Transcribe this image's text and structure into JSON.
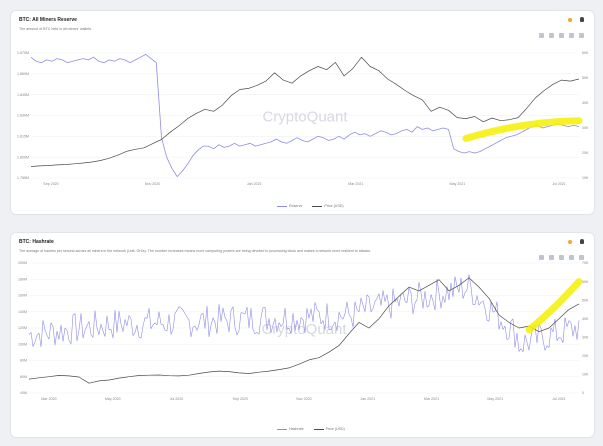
{
  "colors": {
    "reserve": "#8f8ce6",
    "price": "#4a4a4a",
    "highlight": "#f4f000",
    "grid": "#eef0f3",
    "watermark": "#d7d9e2"
  },
  "watermark": "CryptoQuant",
  "chart_data": [
    {
      "type": "line",
      "title": "BTC: All Miners Reserve",
      "subtitle": "The amount of BTC held in all miners' wallets",
      "x_ticks": [
        "Sep 2020",
        "Nov 2020",
        "Jan 2021",
        "Mar 2021",
        "May 2021",
        "Jul 2021"
      ],
      "y_left_ticks": [
        "1.875M",
        "1.860M",
        "1.845M",
        "1.830M",
        "1.815M",
        "1.800M",
        "1.785M"
      ],
      "y_left_range": [
        1785000,
        1875000
      ],
      "y_right_ticks": [
        "60K",
        "50K",
        "40K",
        "30K",
        "20K",
        "10K"
      ],
      "y_right_range": [
        5000,
        65000
      ],
      "legend_position": "bottom",
      "series": [
        {
          "name": "Reserve",
          "axis": "left",
          "x": [
            0,
            3,
            6,
            9,
            12,
            15,
            18,
            21,
            24,
            27,
            30,
            33,
            36,
            39,
            42,
            45,
            48,
            51,
            54,
            57,
            60,
            63,
            66,
            69,
            72,
            75,
            78,
            81,
            84,
            87,
            90,
            93,
            96,
            99,
            102,
            105,
            108,
            111,
            114,
            117,
            120,
            123,
            126,
            129,
            132,
            135,
            138,
            141,
            144,
            147,
            150,
            153,
            156,
            159,
            162,
            165,
            168,
            171,
            174,
            177,
            180,
            183,
            186,
            189,
            192,
            195,
            198,
            201,
            204,
            207,
            210,
            213,
            216,
            219,
            222,
            225,
            228,
            231,
            234,
            237,
            240,
            243,
            246,
            249,
            252,
            255,
            258,
            261,
            264,
            267,
            270,
            273,
            276,
            279,
            282,
            285,
            288,
            291,
            294,
            297,
            300,
            303,
            306,
            309,
            312,
            315
          ],
          "values": [
            1872000,
            1869000,
            1868000,
            1870000,
            1869000,
            1871000,
            1870000,
            1868000,
            1869000,
            1870000,
            1871000,
            1870000,
            1872000,
            1869000,
            1868000,
            1870000,
            1869000,
            1871000,
            1870000,
            1868000,
            1870000,
            1872000,
            1874000,
            1871000,
            1868000,
            1814000,
            1800000,
            1792000,
            1786000,
            1790000,
            1795000,
            1801000,
            1805000,
            1808000,
            1808000,
            1806000,
            1809000,
            1807000,
            1808000,
            1810000,
            1808000,
            1809000,
            1810000,
            1808000,
            1809000,
            1810000,
            1811000,
            1813000,
            1811000,
            1810000,
            1812000,
            1814000,
            1812000,
            1811000,
            1813000,
            1815000,
            1814000,
            1812000,
            1813000,
            1815000,
            1813000,
            1816000,
            1818000,
            1816000,
            1817000,
            1815000,
            1817000,
            1819000,
            1818000,
            1816000,
            1817000,
            1819000,
            1820000,
            1818000,
            1822000,
            1820000,
            1821000,
            1819000,
            1820000,
            1821000,
            1820000,
            1806000,
            1804000,
            1803000,
            1804000,
            1803000,
            1804000,
            1806000,
            1808000,
            1810000,
            1812000,
            1814000,
            1815000,
            1816000,
            1818000,
            1820000,
            1822000,
            1823000,
            1821000,
            1822000,
            1823000,
            1824000,
            1823000,
            1822000,
            1823000,
            1822000
          ]
        },
        {
          "name": "Price (USD)",
          "axis": "right",
          "x": [
            0,
            5,
            10,
            15,
            20,
            25,
            30,
            35,
            40,
            45,
            50,
            55,
            60,
            65,
            70,
            75,
            80,
            85,
            90,
            95,
            100,
            105,
            110,
            115,
            120,
            125,
            130,
            135,
            140,
            145,
            150,
            155,
            160,
            165,
            170,
            175,
            180,
            185,
            190,
            195,
            200,
            205,
            210,
            215,
            220,
            225,
            230,
            235,
            240,
            245,
            250,
            255,
            260,
            265,
            270,
            275,
            280,
            285,
            290,
            295,
            300,
            305,
            310,
            315
          ],
          "values": [
            10500,
            10800,
            11000,
            11300,
            11500,
            11800,
            12200,
            12700,
            13400,
            14500,
            16000,
            17800,
            18800,
            19500,
            21500,
            23500,
            27000,
            30000,
            33500,
            36000,
            38000,
            37000,
            40000,
            44500,
            47500,
            48000,
            49500,
            51500,
            55500,
            52000,
            50500,
            54000,
            56500,
            58500,
            57000,
            60500,
            54000,
            57500,
            63000,
            58500,
            56500,
            52500,
            50000,
            47000,
            44500,
            42500,
            37000,
            39000,
            37500,
            34000,
            33500,
            34500,
            32000,
            33800,
            32500,
            33000,
            34000,
            38500,
            43500,
            47000,
            50000,
            52000,
            51500,
            52500
          ]
        }
      ],
      "highlight": {
        "x": [
          250,
          315
        ],
        "values": [
          24000,
          32500
        ],
        "axis": "right"
      }
    },
    {
      "type": "line",
      "title": "BTC: Hashrate",
      "subtitle": "The average of hashes per second across all miners in the network (Unit: GH/s). The number increases means more computing powers are being devoted in processing block and makes a network more resilient to attacks.",
      "x_ticks": [
        "Mar 2020",
        "May 2020",
        "Jul 2020",
        "Sep 2020",
        "Nov 2020",
        "Jan 2021",
        "Mar 2021",
        "May 2021",
        "Jul 2021"
      ],
      "y_left_ticks": [
        "200M",
        "180M",
        "160M",
        "140M",
        "120M",
        "100M",
        "80M",
        "60M",
        "40M"
      ],
      "y_left_range": [
        40000000,
        200000000
      ],
      "y_right_ticks": [
        "70K",
        "60K",
        "50K",
        "40K",
        "30K",
        "20K",
        "10K",
        "0"
      ],
      "y_right_range": [
        0,
        70000
      ],
      "legend_position": "bottom",
      "series": [
        {
          "name": "Hashrate",
          "axis": "left",
          "x_start": "2020-01",
          "x_end": "2021-08"
        },
        {
          "name": "Price (USD)",
          "axis": "right",
          "x": [
            0,
            10,
            20,
            30,
            40,
            50,
            60,
            70,
            80,
            90,
            100,
            110,
            120,
            130,
            140,
            150,
            160,
            170,
            180,
            190,
            200,
            210,
            220,
            230,
            240,
            250,
            260,
            270,
            280,
            290,
            300,
            310,
            320,
            330,
            340,
            350,
            360,
            370,
            380,
            390,
            400,
            410,
            420,
            430,
            440,
            450,
            460,
            470,
            480,
            490,
            500,
            510,
            520,
            530,
            540,
            550
          ],
          "values": [
            7500,
            8200,
            8800,
            9500,
            9200,
            8600,
            5300,
            6500,
            7000,
            8000,
            8800,
            9400,
            9600,
            9700,
            9300,
            9200,
            9600,
            10500,
            11300,
            11800,
            11500,
            10800,
            10500,
            11200,
            11800,
            12600,
            13500,
            15500,
            17800,
            19000,
            22000,
            25500,
            32000,
            38000,
            35000,
            40000,
            47000,
            52000,
            57000,
            55000,
            58000,
            61000,
            55000,
            58000,
            62000,
            57000,
            51000,
            42000,
            38000,
            35000,
            36000,
            33000,
            35000,
            40000,
            45000,
            48000
          ]
        }
      ],
      "highlight": {
        "x": [
          500,
          550
        ],
        "values": [
          34000,
          60000
        ],
        "axis": "left_scaled"
      }
    }
  ],
  "legend": {
    "reserve": "Reserve",
    "hashrate": "Hashrate",
    "price": "Price (USD)"
  }
}
